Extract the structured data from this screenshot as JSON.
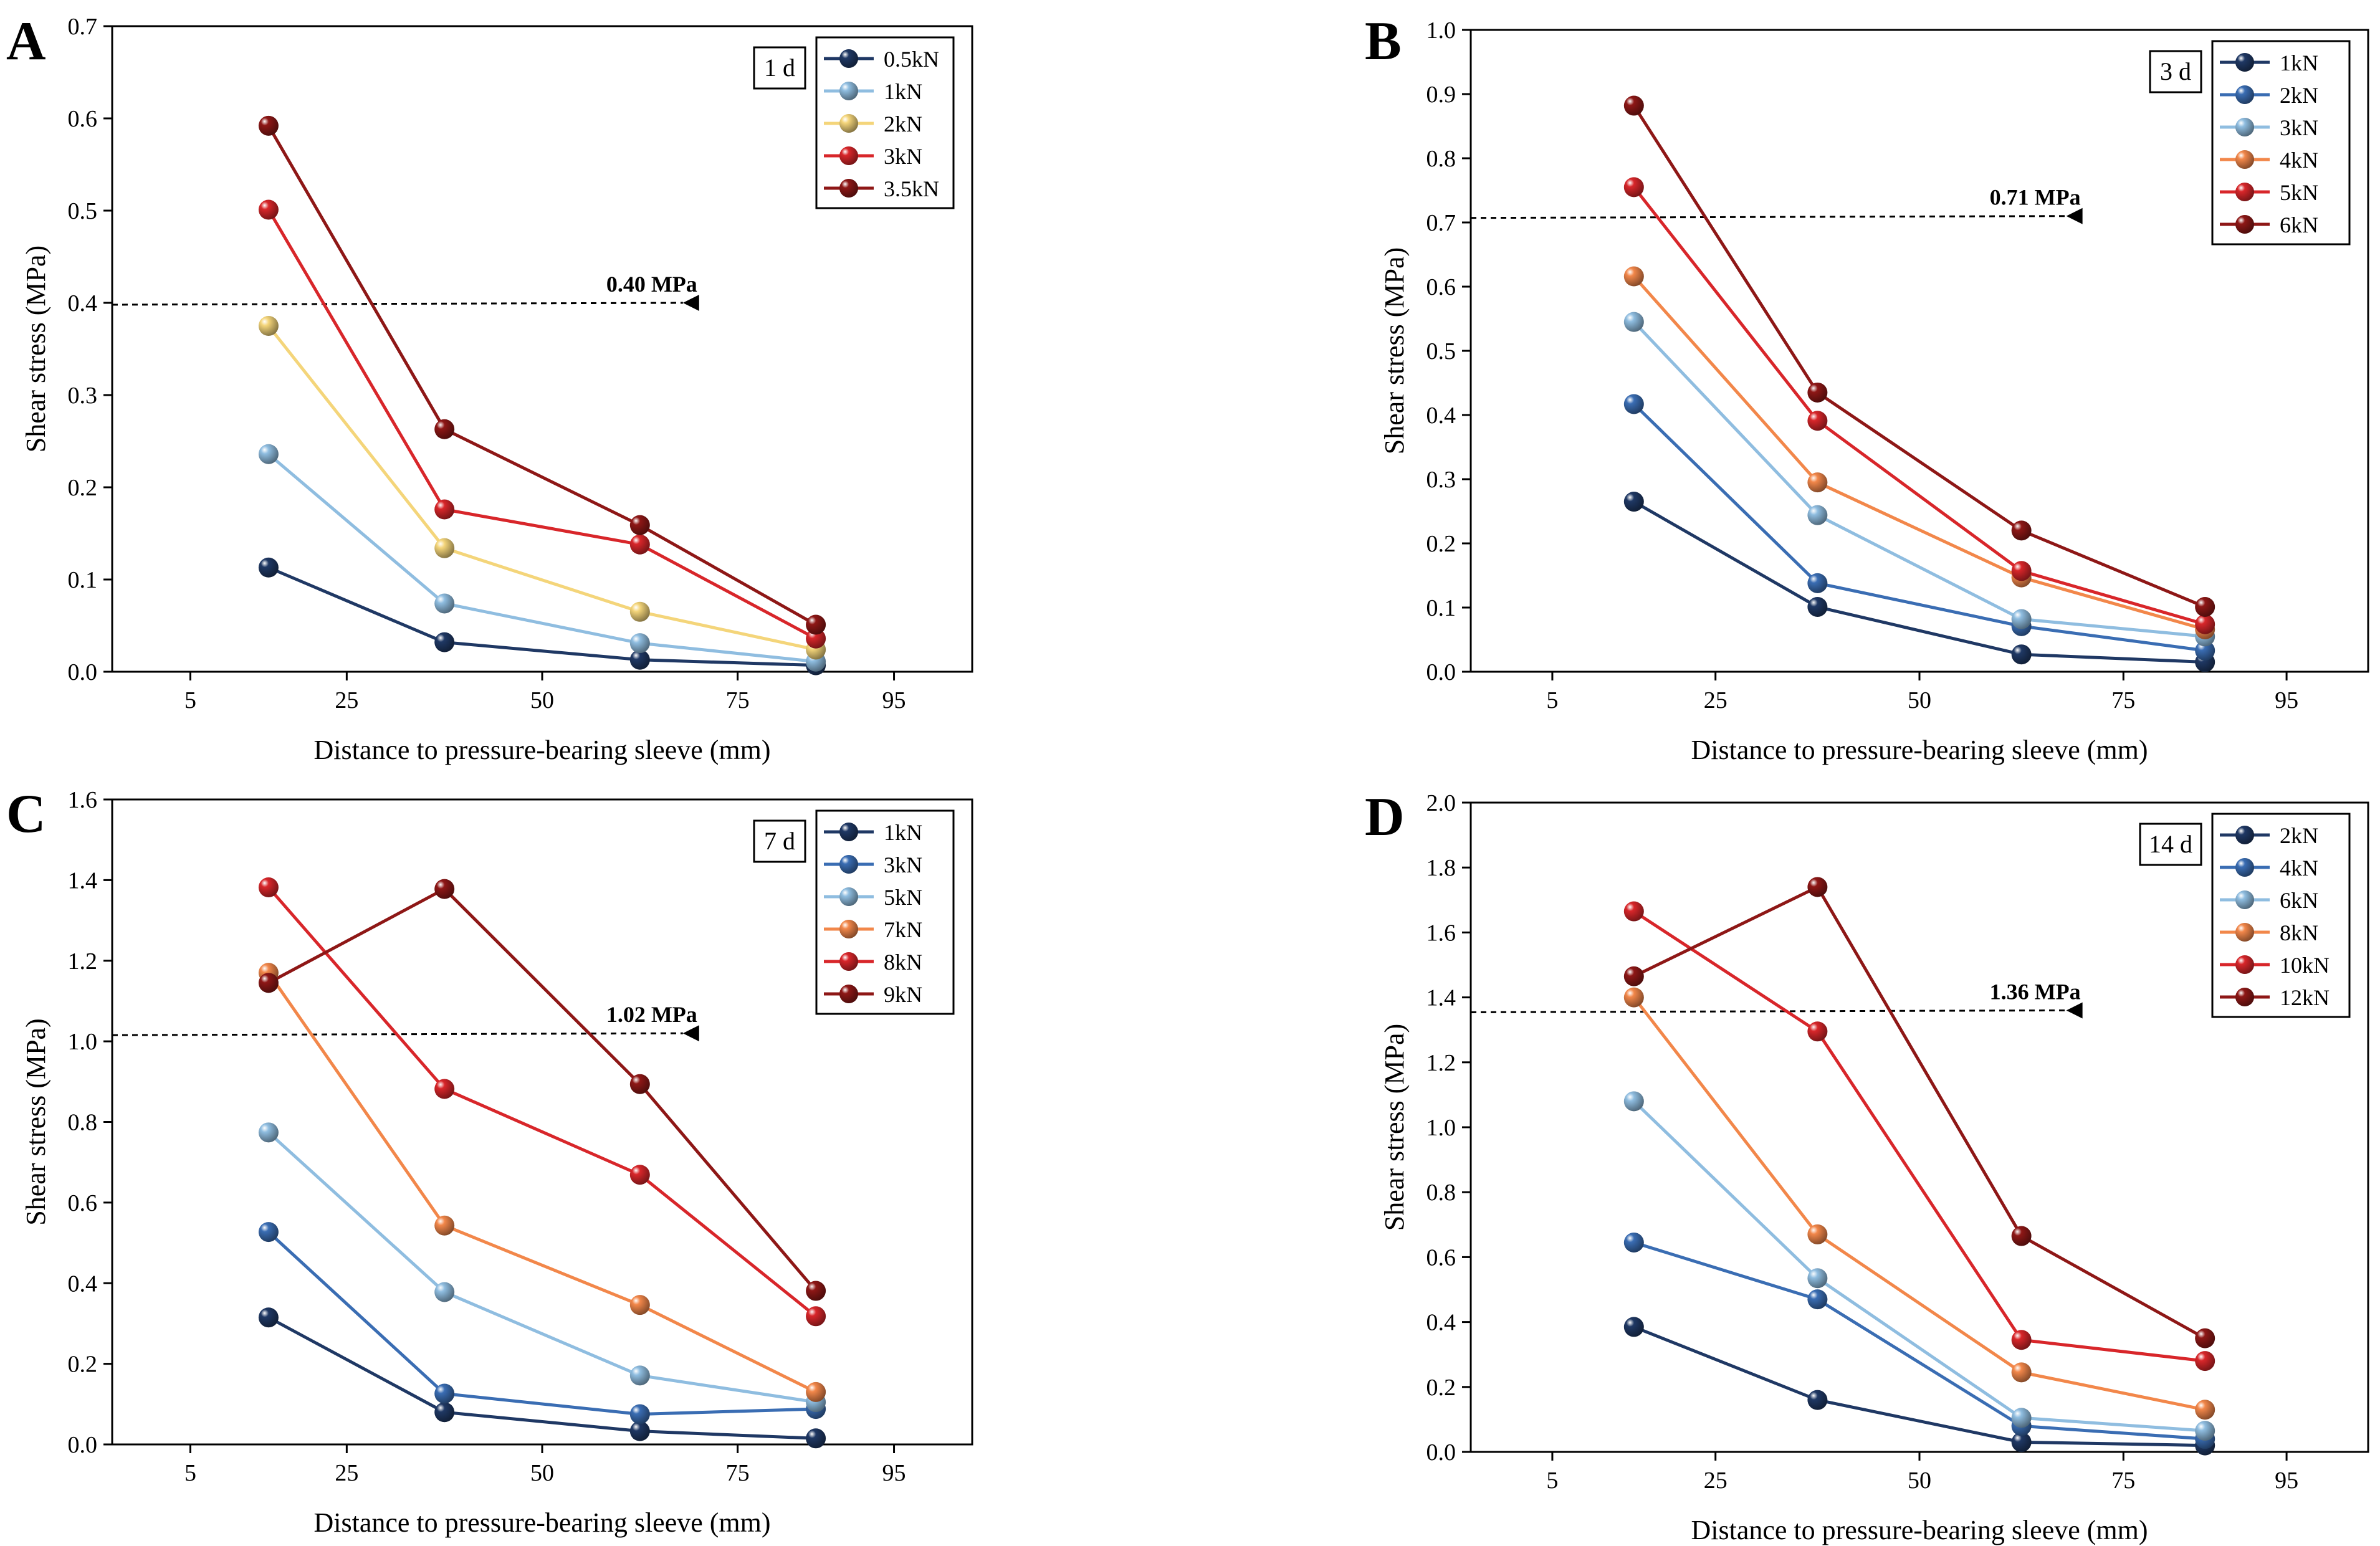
{
  "colors": {
    "navy": "#1f3864",
    "blue": "#3a6db3",
    "lightblue": "#8fbde0",
    "yellow": "#f4d57a",
    "orange": "#f2874a",
    "red": "#d8262a",
    "darkred": "#8e1716"
  },
  "chart_data": [
    {
      "panel": "A",
      "type": "line",
      "age_label": "1 d",
      "xlabel": "Distance to pressure-bearing sleeve (mm)",
      "ylabel": "Shear stress (MPa)",
      "xlim": [
        -5,
        105
      ],
      "ylim": [
        0,
        0.7
      ],
      "xticks": [
        5,
        25,
        50,
        75,
        95
      ],
      "yticks": [
        0.0,
        0.1,
        0.2,
        0.3,
        0.4,
        0.5,
        0.6,
        0.7
      ],
      "ytick_labels": [
        "0.0",
        "0.1",
        "0.2",
        "0.3",
        "0.4",
        "0.5",
        "0.6",
        "0.7"
      ],
      "x": [
        15,
        37.5,
        62.5,
        85
      ],
      "threshold": {
        "value": 0.4,
        "label": "0.40 MPa",
        "x_end": 68
      },
      "series": [
        {
          "name": "0.5kN",
          "color": "navy",
          "values": [
            0.113,
            0.032,
            0.013,
            0.007
          ]
        },
        {
          "name": "1kN",
          "color": "lightblue",
          "values": [
            0.236,
            0.074,
            0.031,
            0.011
          ]
        },
        {
          "name": "2kN",
          "color": "yellow",
          "values": [
            0.375,
            0.134,
            0.065,
            0.024
          ]
        },
        {
          "name": "3kN",
          "color": "red",
          "values": [
            0.501,
            0.176,
            0.138,
            0.036
          ]
        },
        {
          "name": "3.5kN",
          "color": "darkred",
          "values": [
            0.592,
            0.263,
            0.159,
            0.051
          ]
        }
      ]
    },
    {
      "panel": "B",
      "type": "line",
      "age_label": "3 d",
      "xlabel": "Distance to pressure-bearing sleeve (mm)",
      "ylabel": "Shear stress (MPa)",
      "xlim": [
        -5,
        105
      ],
      "ylim": [
        0,
        1.0
      ],
      "xticks": [
        5,
        25,
        50,
        75,
        95
      ],
      "yticks": [
        0.0,
        0.1,
        0.2,
        0.3,
        0.4,
        0.5,
        0.6,
        0.7,
        0.8,
        0.9,
        1.0
      ],
      "ytick_labels": [
        "0.0",
        "0.1",
        "0.2",
        "0.3",
        "0.4",
        "0.5",
        "0.6",
        "0.7",
        "0.8",
        "0.9",
        "1.0"
      ],
      "x": [
        15,
        37.5,
        62.5,
        85
      ],
      "threshold": {
        "value": 0.71,
        "label": "0.71 MPa",
        "x_end": 68
      },
      "series": [
        {
          "name": "1kN",
          "color": "navy",
          "values": [
            0.265,
            0.101,
            0.027,
            0.015
          ]
        },
        {
          "name": "2kN",
          "color": "blue",
          "values": [
            0.417,
            0.138,
            0.071,
            0.033
          ]
        },
        {
          "name": "3kN",
          "color": "lightblue",
          "values": [
            0.545,
            0.244,
            0.082,
            0.055
          ]
        },
        {
          "name": "4kN",
          "color": "orange",
          "values": [
            0.616,
            0.295,
            0.147,
            0.066
          ]
        },
        {
          "name": "5kN",
          "color": "red",
          "values": [
            0.755,
            0.391,
            0.157,
            0.074
          ]
        },
        {
          "name": "6kN",
          "color": "darkred",
          "values": [
            0.882,
            0.435,
            0.22,
            0.101
          ]
        }
      ]
    },
    {
      "panel": "C",
      "type": "line",
      "age_label": "7 d",
      "xlabel": "Distance to pressure-bearing sleeve (mm)",
      "ylabel": "Shear stress (MPa)",
      "xlim": [
        -5,
        105
      ],
      "ylim": [
        0,
        1.6
      ],
      "xticks": [
        5,
        25,
        50,
        75,
        95
      ],
      "yticks": [
        0.0,
        0.2,
        0.4,
        0.6,
        0.8,
        1.0,
        1.2,
        1.4,
        1.6
      ],
      "ytick_labels": [
        "0.0",
        "0.2",
        "0.4",
        "0.6",
        "0.8",
        "1.0",
        "1.2",
        "1.4",
        "1.6"
      ],
      "x": [
        15,
        37.5,
        62.5,
        85
      ],
      "threshold": {
        "value": 1.02,
        "label": "1.02 MPa",
        "x_end": 68
      },
      "series": [
        {
          "name": "1kN",
          "color": "navy",
          "values": [
            0.315,
            0.08,
            0.033,
            0.015
          ]
        },
        {
          "name": "3kN",
          "color": "blue",
          "values": [
            0.527,
            0.126,
            0.075,
            0.088
          ]
        },
        {
          "name": "5kN",
          "color": "lightblue",
          "values": [
            0.774,
            0.378,
            0.171,
            0.105
          ]
        },
        {
          "name": "7kN",
          "color": "orange",
          "values": [
            1.17,
            0.543,
            0.346,
            0.13
          ]
        },
        {
          "name": "8kN",
          "color": "red",
          "values": [
            1.382,
            0.882,
            0.669,
            0.318
          ]
        },
        {
          "name": "9kN",
          "color": "darkred",
          "values": [
            1.145,
            1.378,
            0.894,
            0.381
          ]
        }
      ]
    },
    {
      "panel": "D",
      "type": "line",
      "age_label": "14 d",
      "xlabel": "Distance to pressure-bearing sleeve (mm)",
      "ylabel": "Shear stress (MPa)",
      "xlim": [
        -5,
        105
      ],
      "ylim": [
        0,
        2.0
      ],
      "xticks": [
        5,
        25,
        50,
        75,
        95
      ],
      "yticks": [
        0.0,
        0.2,
        0.4,
        0.6,
        0.8,
        1.0,
        1.2,
        1.4,
        1.6,
        1.8,
        2.0
      ],
      "ytick_labels": [
        "0.0",
        "0.2",
        "0.4",
        "0.6",
        "0.8",
        "1.0",
        "1.2",
        "1.4",
        "1.6",
        "1.8",
        "2.0"
      ],
      "x": [
        15,
        37.5,
        62.5,
        85
      ],
      "threshold": {
        "value": 1.36,
        "label": "1.36 MPa",
        "x_end": 68
      },
      "series": [
        {
          "name": "2kN",
          "color": "navy",
          "values": [
            0.385,
            0.16,
            0.03,
            0.02
          ]
        },
        {
          "name": "4kN",
          "color": "blue",
          "values": [
            0.645,
            0.47,
            0.08,
            0.04
          ]
        },
        {
          "name": "6kN",
          "color": "lightblue",
          "values": [
            1.08,
            0.535,
            0.105,
            0.065
          ]
        },
        {
          "name": "8kN",
          "color": "orange",
          "values": [
            1.4,
            0.67,
            0.245,
            0.13
          ]
        },
        {
          "name": "10kN",
          "color": "red",
          "values": [
            1.665,
            1.295,
            0.345,
            0.28
          ]
        },
        {
          "name": "12kN",
          "color": "darkred",
          "values": [
            1.465,
            1.74,
            0.665,
            0.35
          ]
        }
      ]
    }
  ]
}
